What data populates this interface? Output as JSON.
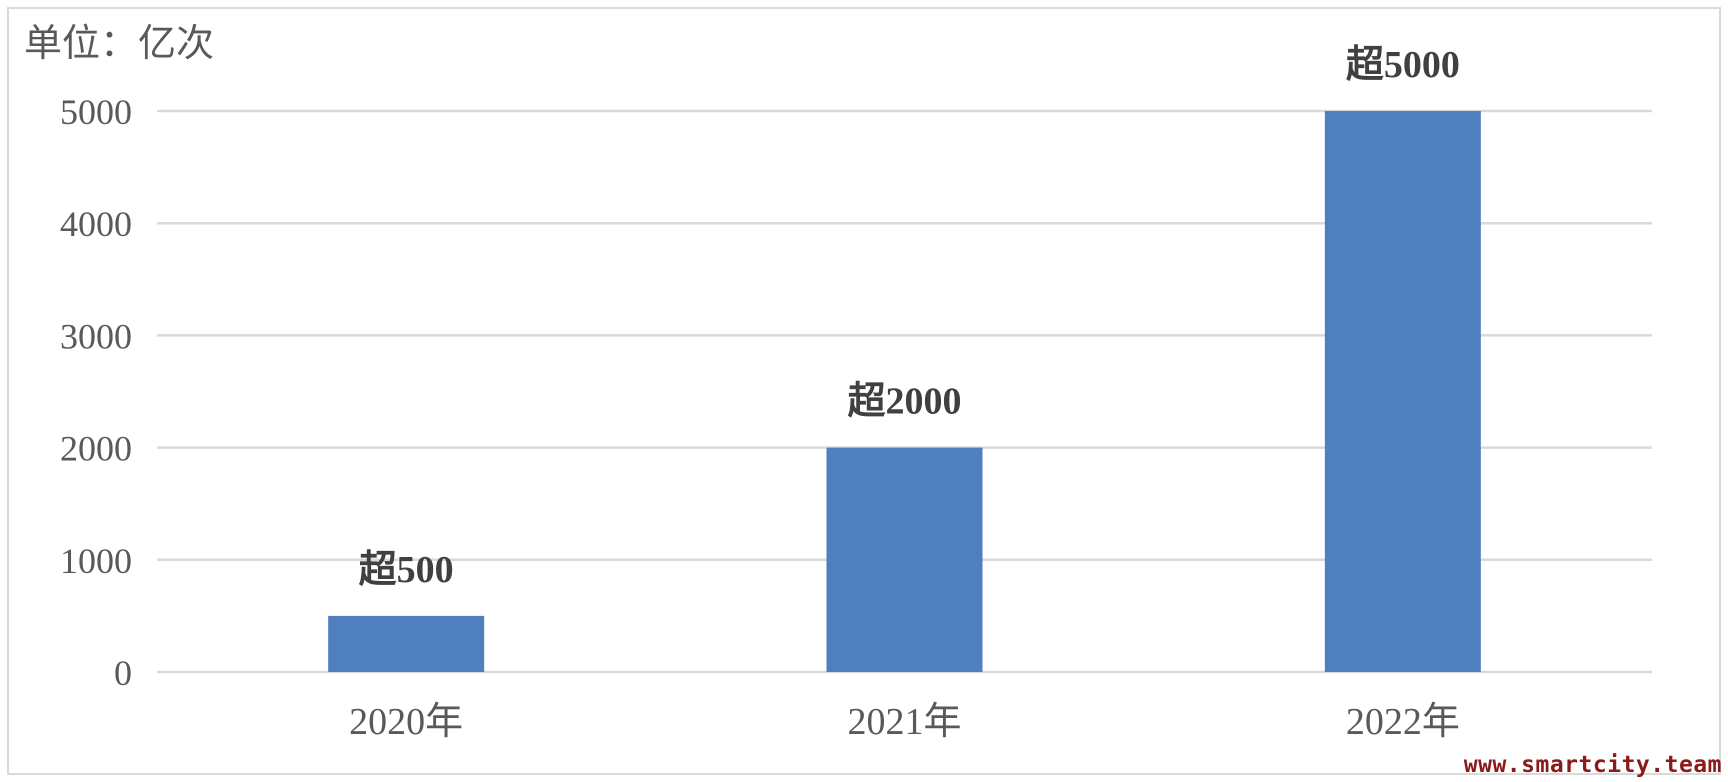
{
  "chart_data": {
    "type": "bar",
    "unit_label": "单位：亿次",
    "categories": [
      "2020年",
      "2021年",
      "2022年"
    ],
    "series": [
      {
        "values": [
          500,
          2000,
          5000
        ],
        "data_labels": [
          "超500",
          "超2000",
          "超5000"
        ],
        "color": "#4f7fbf"
      }
    ],
    "ylim": [
      0,
      5000
    ],
    "yticks": [
      0,
      1000,
      2000,
      3000,
      4000,
      5000
    ],
    "grid": true,
    "legend": "none"
  },
  "watermark": "www.smartcity.team"
}
